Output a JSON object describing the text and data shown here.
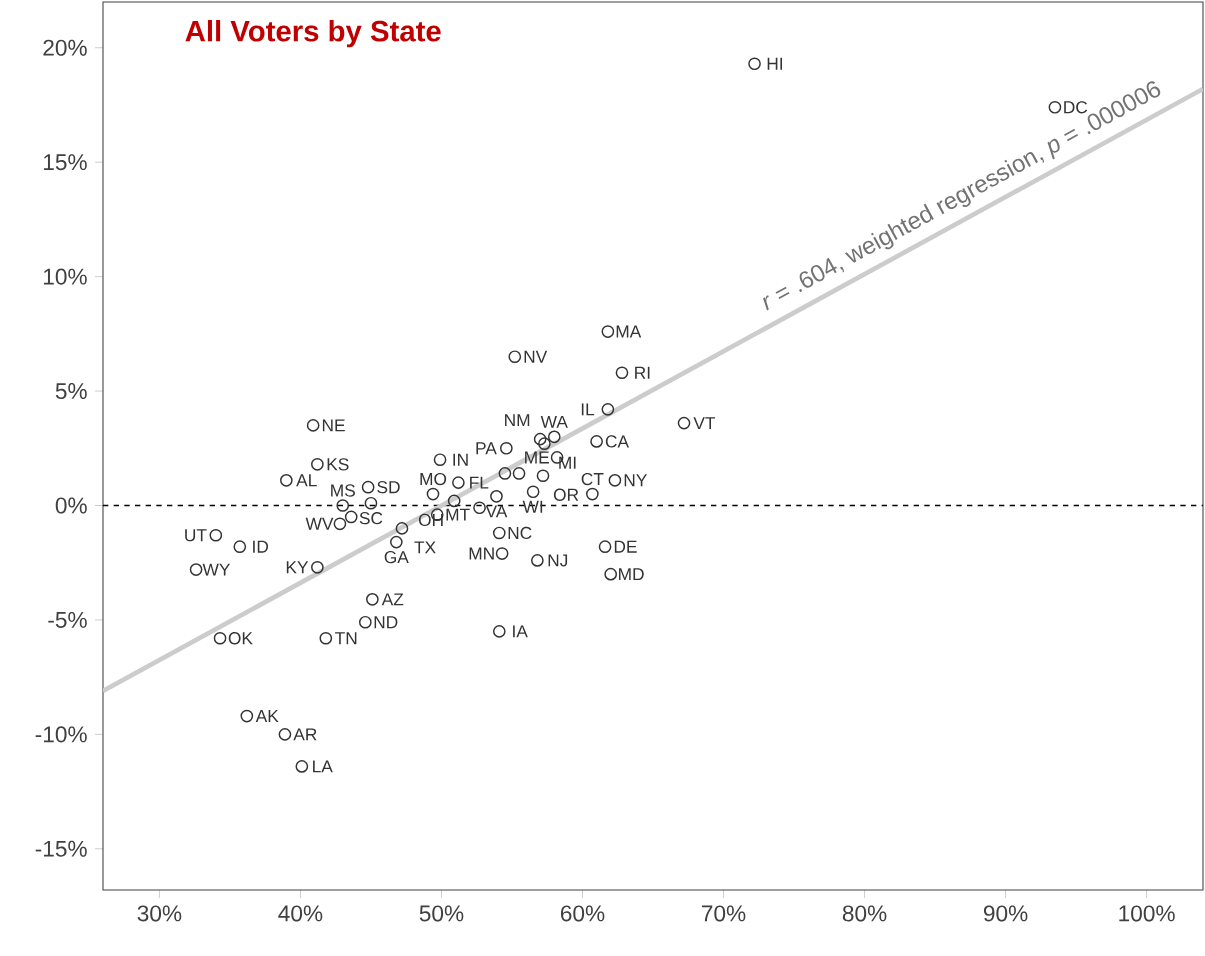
{
  "chart_data": {
    "type": "scatter",
    "title": "All Voters by State",
    "xlim": [
      26,
      104
    ],
    "ylim": [
      -16.8,
      22
    ],
    "xticks": [
      {
        "value": 30,
        "label": "30%"
      },
      {
        "value": 40,
        "label": "40%"
      },
      {
        "value": 50,
        "label": "50%"
      },
      {
        "value": 60,
        "label": "60%"
      },
      {
        "value": 70,
        "label": "70%"
      },
      {
        "value": 80,
        "label": "80%"
      },
      {
        "value": 90,
        "label": "90%"
      },
      {
        "value": 100,
        "label": "100%"
      }
    ],
    "yticks": [
      {
        "value": -15,
        "label": "-15%"
      },
      {
        "value": -10,
        "label": "-10%"
      },
      {
        "value": -5,
        "label": "-5%"
      },
      {
        "value": 0,
        "label": "0%"
      },
      {
        "value": 5,
        "label": "5%"
      },
      {
        "value": 10,
        "label": "10%"
      },
      {
        "value": 15,
        "label": "15%"
      },
      {
        "value": 20,
        "label": "20%"
      }
    ],
    "ref_lines": [
      {
        "axis": "y",
        "value": 0,
        "line_style": "dashed",
        "color": "#000000"
      }
    ],
    "series": [
      {
        "marker": "circle",
        "color": "#333333",
        "x": [
          72.2,
          93.5,
          61.8,
          62.8,
          55.2,
          61.8,
          67.2,
          40.9,
          41.2,
          39.0,
          44.8,
          43.0,
          45.0,
          42.8,
          47.2,
          46.8,
          49.7,
          34.0,
          35.7,
          32.6,
          41.2,
          45.1,
          44.6,
          41.8,
          34.3,
          36.2,
          38.9,
          40.1,
          49.9,
          49.4,
          51.2,
          50.9,
          54.6,
          57.0,
          57.3,
          58.0,
          58.2,
          61.0,
          62.3,
          57.2,
          56.5,
          53.9,
          60.7,
          56.8,
          54.3,
          61.6,
          62.0,
          54.1,
          54.1,
          43.6,
          54.5,
          55.5,
          52.7
        ],
        "values": [
          19.3,
          17.4,
          7.6,
          5.8,
          6.5,
          4.2,
          3.6,
          3.5,
          1.8,
          1.1,
          0.8,
          0.0,
          0.1,
          -0.8,
          -1.0,
          -1.6,
          -0.4,
          -1.3,
          -1.8,
          -2.8,
          -2.7,
          -4.1,
          -5.1,
          -5.8,
          -5.8,
          -9.2,
          -10.0,
          -11.4,
          2.0,
          0.5,
          1.0,
          0.2,
          2.5,
          2.9,
          2.7,
          3.0,
          2.1,
          2.8,
          1.1,
          1.3,
          0.6,
          0.4,
          0.5,
          -2.4,
          -2.1,
          -1.8,
          -3.0,
          -5.5,
          -1.2,
          -0.5,
          1.4,
          1.4,
          -0.1
        ]
      },
      {
        "type": "line",
        "color": "#cccccc",
        "x": [
          26,
          104
        ],
        "values": [
          -8.1,
          18.2
        ]
      }
    ],
    "annotations": [
      {
        "text": "HI",
        "x": 72.2,
        "y": 19.3
      },
      {
        "text": "DC",
        "x": 93.5,
        "y": 17.4
      },
      {
        "text": "MA",
        "x": 61.8,
        "y": 7.6
      },
      {
        "text": "RI",
        "x": 62.8,
        "y": 5.8
      },
      {
        "text": "NV",
        "x": 55.2,
        "y": 6.5
      },
      {
        "text": "IL",
        "x": 61.8,
        "y": 4.2
      },
      {
        "text": "VT",
        "x": 67.2,
        "y": 3.6
      },
      {
        "text": "NE",
        "x": 40.9,
        "y": 3.5
      },
      {
        "text": "KS",
        "x": 41.2,
        "y": 1.8
      },
      {
        "text": "AL",
        "x": 39.0,
        "y": 1.1
      },
      {
        "text": "SD",
        "x": 44.8,
        "y": 0.8
      },
      {
        "text": "MS",
        "x": 43.0,
        "y": 0.0
      },
      {
        "text": "SC",
        "x": 45.0,
        "y": 0.1
      },
      {
        "text": "WV",
        "x": 42.8,
        "y": -0.8
      },
      {
        "text": "TX",
        "x": 47.2,
        "y": -1.0
      },
      {
        "text": "GA",
        "x": 46.8,
        "y": -1.6
      },
      {
        "text": "MT",
        "x": 49.7,
        "y": -0.4
      },
      {
        "text": "UT",
        "x": 34.0,
        "y": -1.3
      },
      {
        "text": "ID",
        "x": 35.7,
        "y": -1.8
      },
      {
        "text": "WY",
        "x": 32.6,
        "y": -2.8
      },
      {
        "text": "KY",
        "x": 41.2,
        "y": -2.7
      },
      {
        "text": "AZ",
        "x": 45.1,
        "y": -4.1
      },
      {
        "text": "ND",
        "x": 44.6,
        "y": -5.1
      },
      {
        "text": "TN",
        "x": 41.8,
        "y": -5.8
      },
      {
        "text": "OK",
        "x": 34.3,
        "y": -5.8
      },
      {
        "text": "AK",
        "x": 36.2,
        "y": -9.2
      },
      {
        "text": "AR",
        "x": 38.9,
        "y": -10.0
      },
      {
        "text": "LA",
        "x": 40.1,
        "y": -11.4
      },
      {
        "text": "IN",
        "x": 49.9,
        "y": 2.0
      },
      {
        "text": "MO",
        "x": 49.4,
        "y": 0.5
      },
      {
        "text": "FL",
        "x": 51.2,
        "y": 1.0
      },
      {
        "text": "OH",
        "x": 50.9,
        "y": 0.2
      },
      {
        "text": "PA",
        "x": 54.6,
        "y": 2.5
      },
      {
        "text": "NM",
        "x": 57.0,
        "y": 2.9
      },
      {
        "text": "MI",
        "x": 57.3,
        "y": 2.7
      },
      {
        "text": "WA",
        "x": 58.0,
        "y": 3.0
      },
      {
        "text": "ME",
        "x": 58.2,
        "y": 2.1
      },
      {
        "text": "CA",
        "x": 61.0,
        "y": 2.8
      },
      {
        "text": "NY",
        "x": 62.3,
        "y": 1.1
      },
      {
        "text": "OR",
        "x": 57.2,
        "y": 1.3
      },
      {
        "text": "WI",
        "x": 56.5,
        "y": 0.6
      },
      {
        "text": "VA",
        "x": 53.9,
        "y": 0.4
      },
      {
        "text": "CT",
        "x": 60.7,
        "y": 0.5
      },
      {
        "text": "NJ",
        "x": 56.8,
        "y": -2.4
      },
      {
        "text": "MN",
        "x": 54.3,
        "y": -2.1
      },
      {
        "text": "DE",
        "x": 61.6,
        "y": -1.8
      },
      {
        "text": "MD",
        "x": 62.0,
        "y": -3.0
      },
      {
        "text": "IA",
        "x": 54.1,
        "y": -5.5
      },
      {
        "text": "NC",
        "x": 54.1,
        "y": -1.2
      },
      "*r* = .604, weighted regression, *p* = .000006"
    ]
  }
}
